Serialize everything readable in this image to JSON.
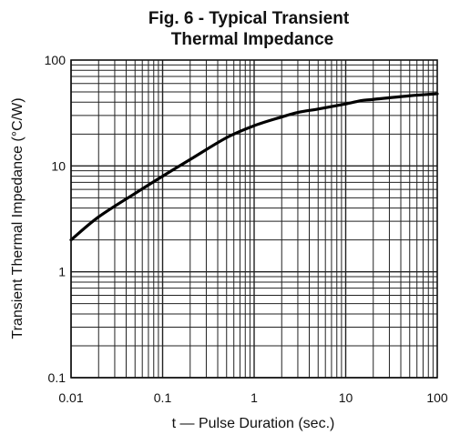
{
  "chart_data": {
    "type": "line",
    "title_line1": "Fig. 6 - Typical Transient",
    "title_line2": "Thermal Impedance",
    "xlabel": "t — Pulse Duration (sec.)",
    "ylabel": "Transient Thermal Impedance (°C/W)",
    "xscale": "log",
    "yscale": "log",
    "xlim": [
      0.01,
      100
    ],
    "ylim": [
      0.1,
      100
    ],
    "xticks": [
      "0.01",
      "0.1",
      "1",
      "10",
      "100"
    ],
    "yticks": [
      "0.1",
      "1",
      "10",
      "100"
    ],
    "grid": true,
    "series": [
      {
        "color": "#000000",
        "x": [
          0.01,
          0.02,
          0.05,
          0.1,
          0.2,
          0.5,
          1,
          2,
          3,
          5,
          10,
          15,
          20,
          50,
          100
        ],
        "y": [
          2.0,
          3.3,
          5.5,
          8.0,
          11.5,
          18.5,
          24.0,
          29.0,
          32.0,
          34.5,
          38.5,
          41.5,
          42.5,
          46.0,
          48.0
        ]
      }
    ]
  }
}
